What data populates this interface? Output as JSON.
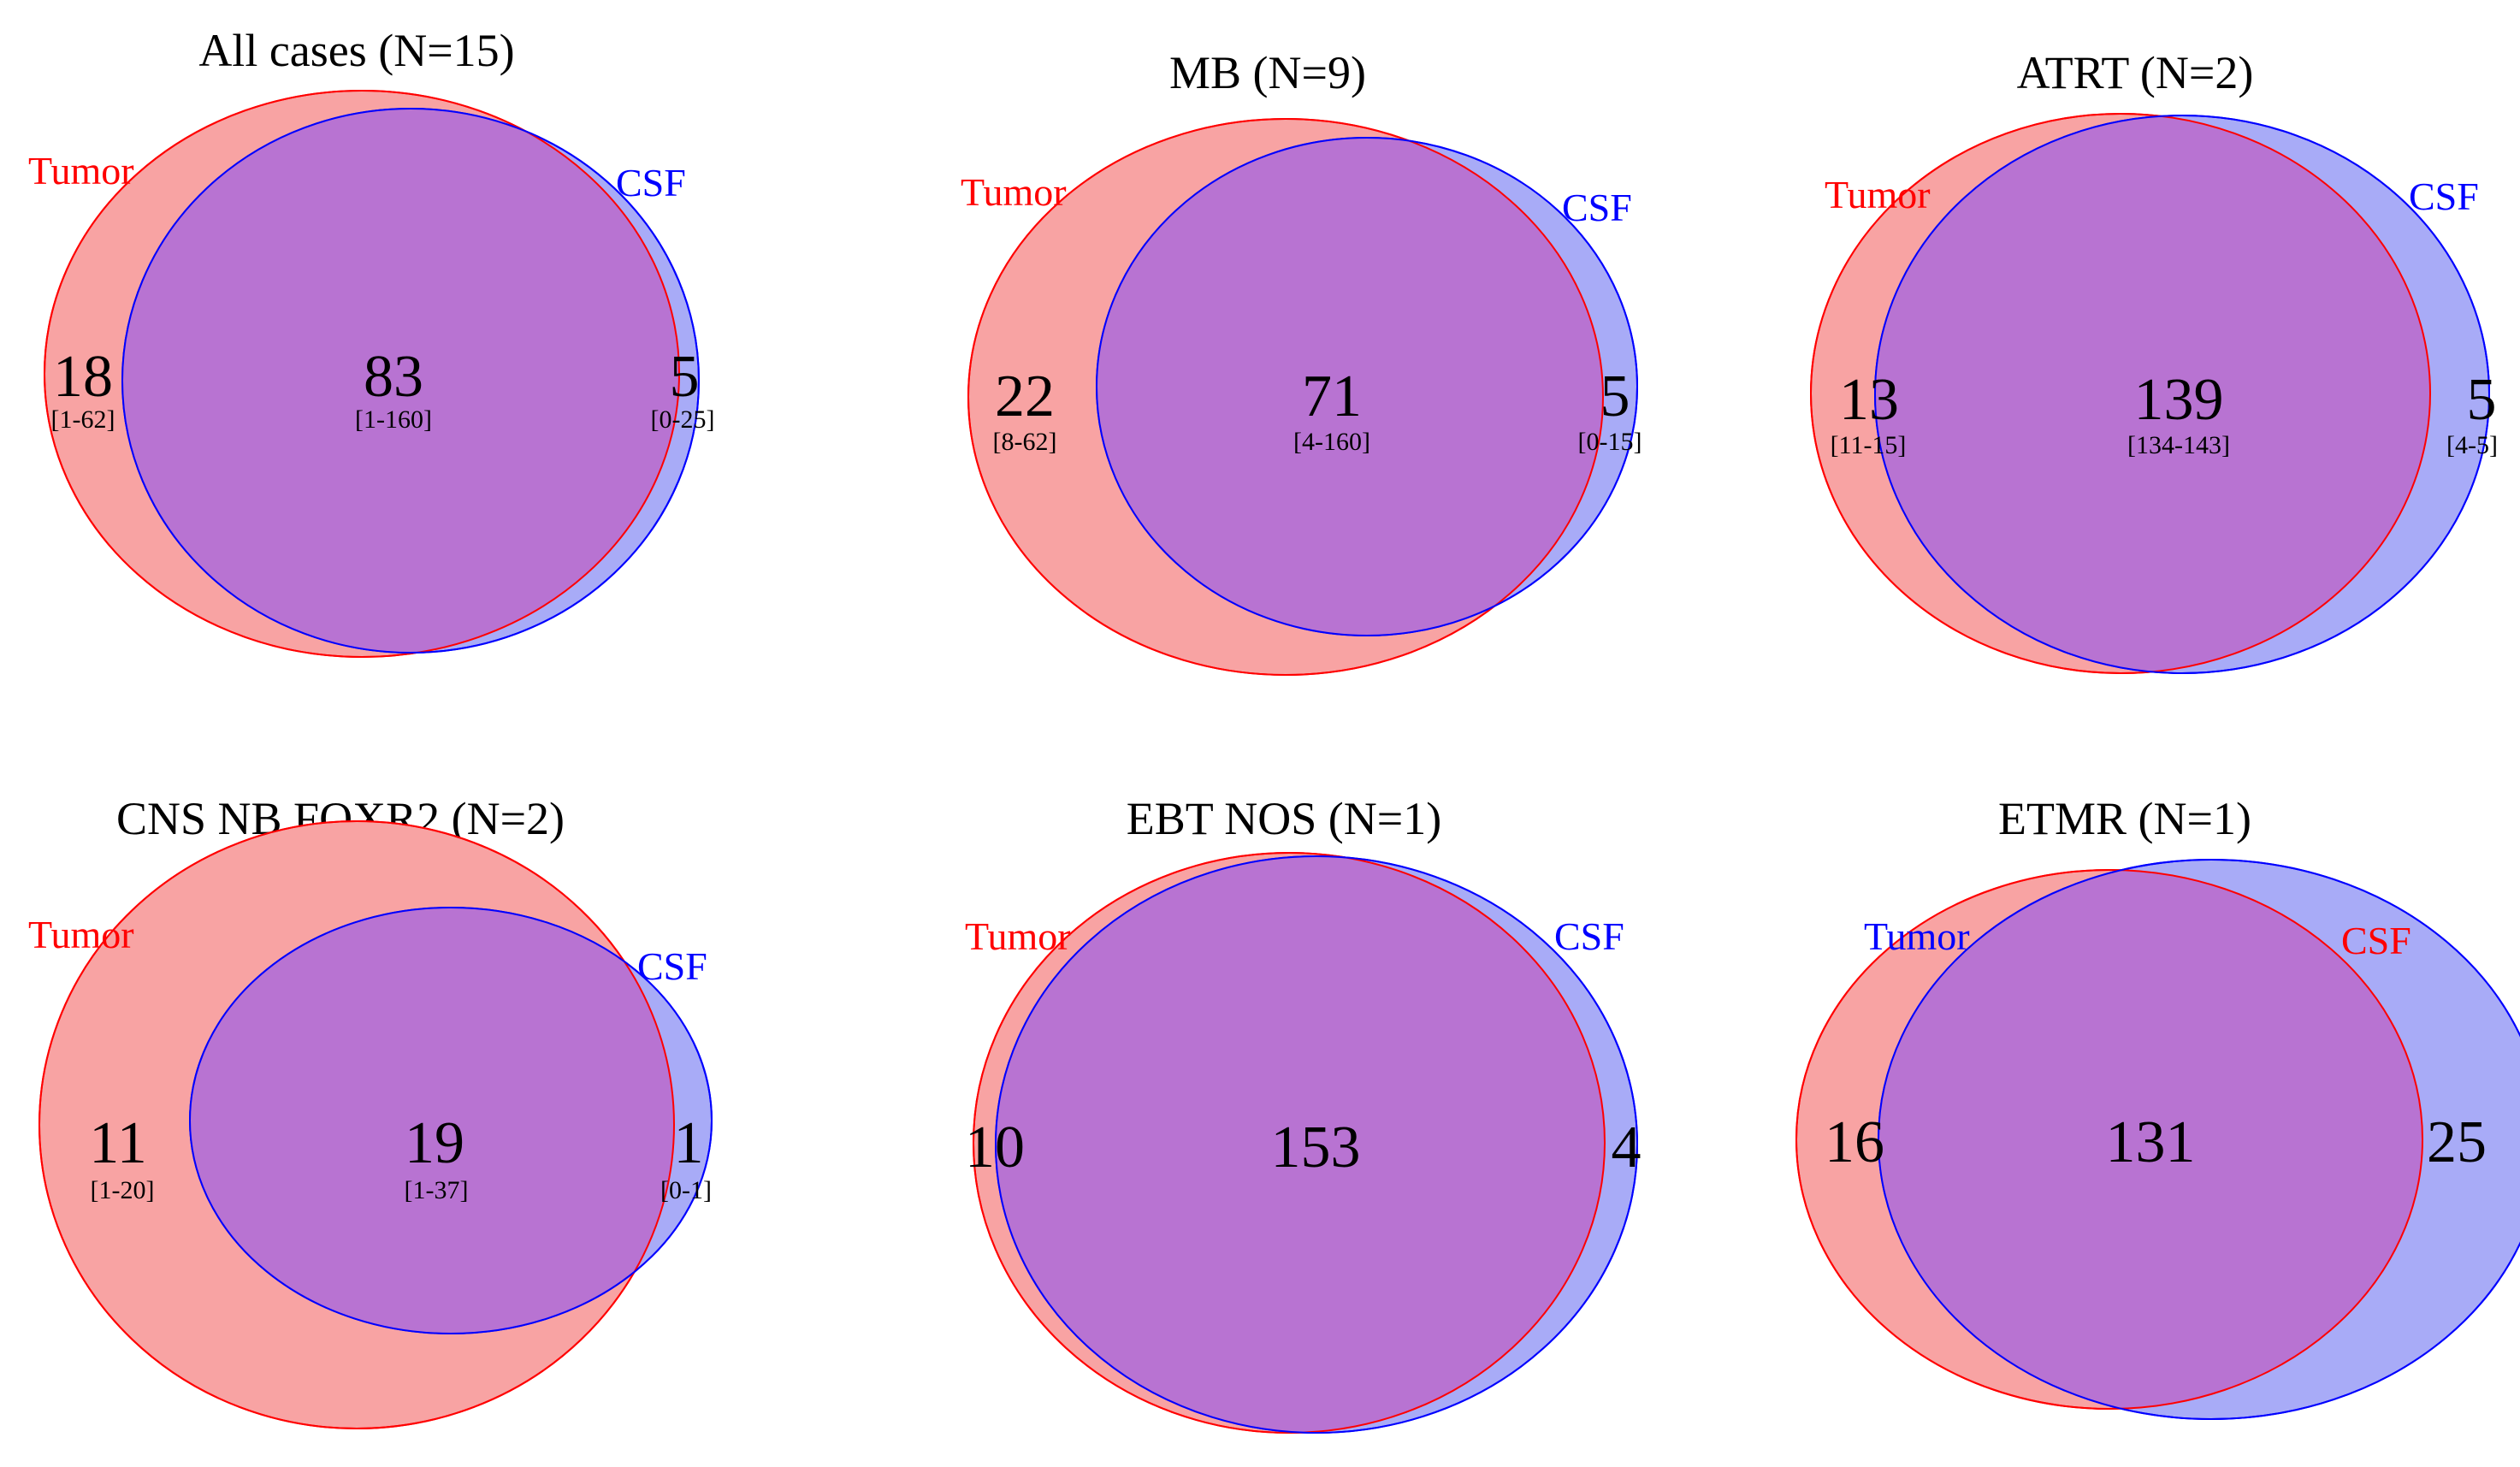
{
  "colors": {
    "tumor_fill": "#F8A3A3",
    "csf_fill": "#A8ABF7",
    "overlap_fill": "#B873D2",
    "red": "#FF0000",
    "blue": "#0000FF",
    "text": "#000000"
  },
  "panels": [
    {
      "title": "All cases (N=15)",
      "left_label": "Tumor",
      "right_label": "CSF",
      "left_label_color": "#FF0000",
      "right_label_color": "#0000FF",
      "left_count": "18",
      "left_range": "[1-62]",
      "overlap_count": "83",
      "overlap_range": "[1-160]",
      "right_count": "5",
      "right_range": "[0-25]"
    },
    {
      "title": "MB (N=9)",
      "left_label": "Tumor",
      "right_label": "CSF",
      "left_label_color": "#FF0000",
      "right_label_color": "#0000FF",
      "left_count": "22",
      "left_range": "[8-62]",
      "overlap_count": "71",
      "overlap_range": "[4-160]",
      "right_count": "5",
      "right_range": "[0-15]"
    },
    {
      "title": "ATRT (N=2)",
      "left_label": "Tumor",
      "right_label": "CSF",
      "left_label_color": "#FF0000",
      "right_label_color": "#0000FF",
      "left_count": "13",
      "left_range": "[11-15]",
      "overlap_count": "139",
      "overlap_range": "[134-143]",
      "right_count": "5",
      "right_range": "[4-5]"
    },
    {
      "title": "CNS NB FOXR2 (N=2)",
      "left_label": "Tumor",
      "right_label": "CSF",
      "left_label_color": "#FF0000",
      "right_label_color": "#0000FF",
      "left_count": "11",
      "left_range": "[1-20]",
      "overlap_count": "19",
      "overlap_range": "[1-37]",
      "right_count": "1",
      "right_range": "[0-1]"
    },
    {
      "title": "EBT NOS (N=1)",
      "left_label": "Tumor",
      "right_label": "CSF",
      "left_label_color": "#FF0000",
      "right_label_color": "#0000FF",
      "left_count": "10",
      "left_range": "",
      "overlap_count": "153",
      "overlap_range": "",
      "right_count": "4",
      "right_range": ""
    },
    {
      "title": "ETMR (N=1)",
      "left_label": "Tumor",
      "right_label": "CSF",
      "left_label_color": "#0000FF",
      "right_label_color": "#FF0000",
      "left_count": "16",
      "left_range": "",
      "overlap_count": "131",
      "overlap_range": "",
      "right_count": "25",
      "right_range": ""
    }
  ]
}
